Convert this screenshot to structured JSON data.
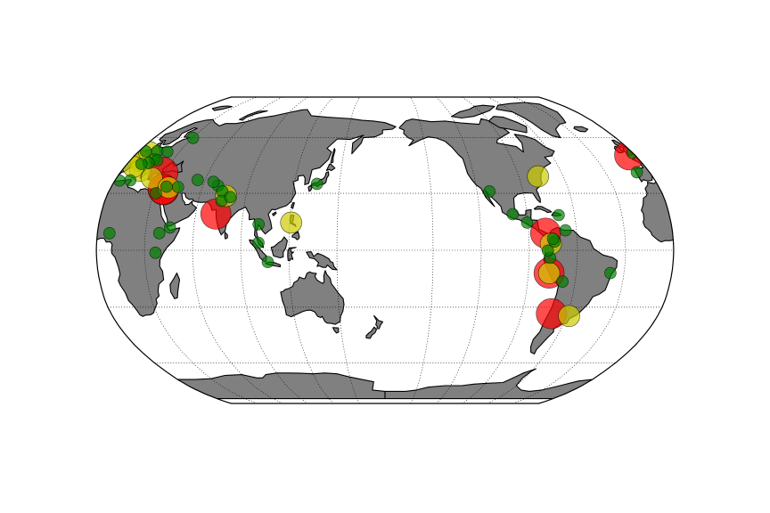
{
  "map": {
    "projection": "robinson",
    "central_meridian_deg": 180,
    "graticule": {
      "parallels_deg": [
        -60,
        -30,
        0,
        30,
        60
      ],
      "meridians_deg": [
        -150,
        -120,
        -90,
        -60,
        -30,
        0,
        30,
        60,
        90,
        120,
        150
      ],
      "line_style": "dotted"
    },
    "land_color": "#808080",
    "coastline_color": "#000000",
    "background_color": "#ffffff",
    "marker_legend": {
      "large": {
        "color": "#ff0000"
      },
      "medium": {
        "color": "#cccc00"
      },
      "small": {
        "color": "#008000"
      }
    }
  },
  "chart_data": {
    "type": "scatter",
    "markers": [
      {
        "lon": 72.8,
        "lat": 19.1,
        "size": "large",
        "color": "#ff0000"
      },
      {
        "lon": 77.2,
        "lat": 28.6,
        "size": "medium",
        "color": "#cccc00"
      },
      {
        "lon": 120.9,
        "lat": 14.6,
        "size": "medium",
        "color": "#cccc00"
      },
      {
        "lon": 28.9,
        "lat": 41.0,
        "size": "large",
        "color": "#ff0000"
      },
      {
        "lon": 35.2,
        "lat": 31.8,
        "size": "large",
        "color": "#ff0000"
      },
      {
        "lon": 34.8,
        "lat": 32.1,
        "size": "large",
        "color": "#ff0000"
      },
      {
        "lon": -3.7,
        "lat": 50.4,
        "size": "large",
        "color": "#ff0000"
      },
      {
        "lon": -77.0,
        "lat": -12.0,
        "size": "large",
        "color": "#ff0000"
      },
      {
        "lon": -79.5,
        "lat": 9.0,
        "size": "large",
        "color": "#ff0000"
      },
      {
        "lon": -70.6,
        "lat": -33.4,
        "size": "large",
        "color": "#ff0000"
      },
      {
        "lon": -77.0,
        "lat": -12.0,
        "size": "medium",
        "color": "#cccc00"
      },
      {
        "lon": -58.4,
        "lat": -34.6,
        "size": "medium",
        "color": "#cccc00"
      },
      {
        "lon": -77.0,
        "lat": 38.9,
        "size": "medium",
        "color": "#cccc00"
      },
      {
        "lon": 2.3,
        "lat": 48.9,
        "size": "medium",
        "color": "#cccc00"
      },
      {
        "lon": 8.0,
        "lat": 47.0,
        "size": "medium",
        "color": "#cccc00"
      },
      {
        "lon": 12.5,
        "lat": 41.9,
        "size": "medium",
        "color": "#cccc00"
      },
      {
        "lon": 6.0,
        "lat": 44.0,
        "size": "medium",
        "color": "#cccc00"
      },
      {
        "lon": 23.7,
        "lat": 38.0,
        "size": "medium",
        "color": "#cccc00"
      },
      {
        "lon": 38.0,
        "lat": 33.0,
        "size": "medium",
        "color": "#cccc00"
      },
      {
        "lon": 8.0,
        "lat": 52.0,
        "size": "medium",
        "color": "#cccc00"
      },
      {
        "lon": -76.5,
        "lat": 3.4,
        "size": "medium",
        "color": "#cccc00"
      },
      {
        "lon": 70.0,
        "lat": 34.0,
        "size": "small",
        "color": "#008000"
      },
      {
        "lon": 66.0,
        "lat": 36.0,
        "size": "small",
        "color": "#008000"
      },
      {
        "lon": 74.0,
        "lat": 31.0,
        "size": "small",
        "color": "#008000"
      },
      {
        "lon": 75.0,
        "lat": 26.0,
        "size": "small",
        "color": "#008000"
      },
      {
        "lon": 80.0,
        "lat": 28.0,
        "size": "small",
        "color": "#008000"
      },
      {
        "lon": 55.0,
        "lat": 37.0,
        "size": "small",
        "color": "#008000"
      },
      {
        "lon": 100.5,
        "lat": 13.7,
        "size": "small",
        "color": "#008000"
      },
      {
        "lon": 101.0,
        "lat": 4.0,
        "size": "small",
        "color": "#008000"
      },
      {
        "lon": 106.8,
        "lat": -6.2,
        "size": "small",
        "color": "#008000"
      },
      {
        "lon": 135.0,
        "lat": 35.0,
        "size": "small",
        "color": "#008000"
      },
      {
        "lon": -74.1,
        "lat": 4.6,
        "size": "small",
        "color": "#008000"
      },
      {
        "lon": -66.9,
        "lat": 10.5,
        "size": "small",
        "color": "#008000"
      },
      {
        "lon": -75.0,
        "lat": 6.0,
        "size": "small",
        "color": "#008000"
      },
      {
        "lon": -77.0,
        "lat": -4.0,
        "size": "small",
        "color": "#008000"
      },
      {
        "lon": -68.0,
        "lat": -16.5,
        "size": "small",
        "color": "#008000"
      },
      {
        "lon": -78.5,
        "lat": -0.2,
        "size": "small",
        "color": "#008000"
      },
      {
        "lon": -38.5,
        "lat": -12.0,
        "size": "small",
        "color": "#008000"
      },
      {
        "lon": -99.0,
        "lat": 19.0,
        "size": "small",
        "color": "#008000"
      },
      {
        "lon": -90.5,
        "lat": 14.6,
        "size": "small",
        "color": "#008000"
      },
      {
        "lon": -70.0,
        "lat": 18.5,
        "size": "small",
        "color": "#008000"
      },
      {
        "lon": -112.0,
        "lat": 31.0,
        "size": "small",
        "color": "#008000"
      },
      {
        "lon": -0.1,
        "lat": 51.5,
        "size": "small",
        "color": "#008000"
      },
      {
        "lon": 4.9,
        "lat": 52.4,
        "size": "small",
        "color": "#008000"
      },
      {
        "lon": 16.4,
        "lat": 48.2,
        "size": "small",
        "color": "#008000"
      },
      {
        "lon": 13.4,
        "lat": 52.5,
        "size": "small",
        "color": "#008000"
      },
      {
        "lon": 21.0,
        "lat": 52.2,
        "size": "small",
        "color": "#008000"
      },
      {
        "lon": 19.0,
        "lat": 47.5,
        "size": "small",
        "color": "#008000"
      },
      {
        "lon": 14.5,
        "lat": 46.0,
        "size": "small",
        "color": "#008000"
      },
      {
        "lon": 10.0,
        "lat": 45.5,
        "size": "small",
        "color": "#008000"
      },
      {
        "lon": -8.6,
        "lat": 41.1,
        "size": "small",
        "color": "#008000"
      },
      {
        "lon": 30.3,
        "lat": 59.9,
        "size": "small",
        "color": "#008000"
      },
      {
        "lon": 10.2,
        "lat": 36.8,
        "size": "small",
        "color": "#008000"
      },
      {
        "lon": 3.0,
        "lat": 36.7,
        "size": "small",
        "color": "#008000"
      },
      {
        "lon": 31.2,
        "lat": 30.0,
        "size": "small",
        "color": "#008000"
      },
      {
        "lon": 36.3,
        "lat": 33.5,
        "size": "small",
        "color": "#008000"
      },
      {
        "lon": 44.0,
        "lat": 33.3,
        "size": "small",
        "color": "#008000"
      },
      {
        "lon": 36.8,
        "lat": -1.3,
        "size": "small",
        "color": "#008000"
      },
      {
        "lon": 38.7,
        "lat": 9.0,
        "size": "small",
        "color": "#008000"
      },
      {
        "lon": 45.0,
        "lat": 12.0,
        "size": "small",
        "color": "#008000"
      },
      {
        "lon": 7.5,
        "lat": 9.0,
        "size": "small",
        "color": "#008000"
      }
    ]
  }
}
